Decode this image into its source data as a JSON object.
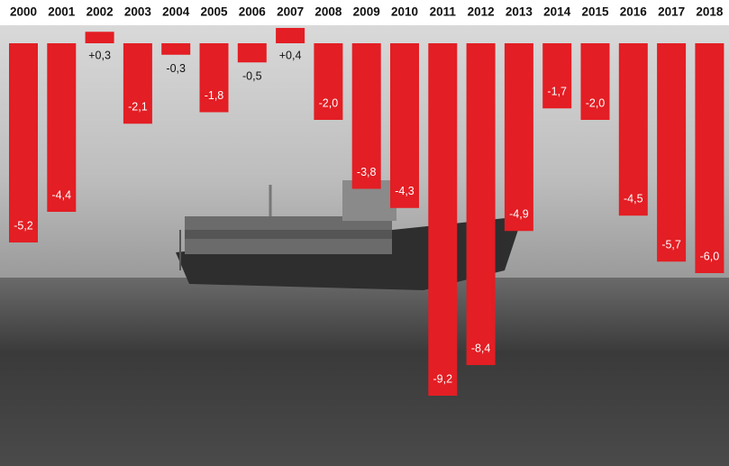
{
  "chart_data": {
    "type": "bar",
    "categories": [
      "2000",
      "2001",
      "2002",
      "2003",
      "2004",
      "2005",
      "2006",
      "2007",
      "2008",
      "2009",
      "2010",
      "2011",
      "2012",
      "2013",
      "2014",
      "2015",
      "2016",
      "2017",
      "2018"
    ],
    "values": [
      -5.2,
      -4.4,
      0.3,
      -2.1,
      -0.3,
      -1.8,
      -0.5,
      0.4,
      -2.0,
      -3.8,
      -4.3,
      -9.2,
      -8.4,
      -4.9,
      -1.7,
      -2.0,
      -4.5,
      -5.7,
      -6.0
    ],
    "value_labels": [
      "-5,2",
      "-4,4",
      "+0,3",
      "-2,1",
      "-0,3",
      "-1,8",
      "-0,5",
      "+0,4",
      "-2,0",
      "-3,8",
      "-4,3",
      "-9,2",
      "-8,4",
      "-4,9",
      "-1,7",
      "-2,0",
      "-4,5",
      "-5,7",
      "-6,0"
    ],
    "color": "#e31e24"
  }
}
